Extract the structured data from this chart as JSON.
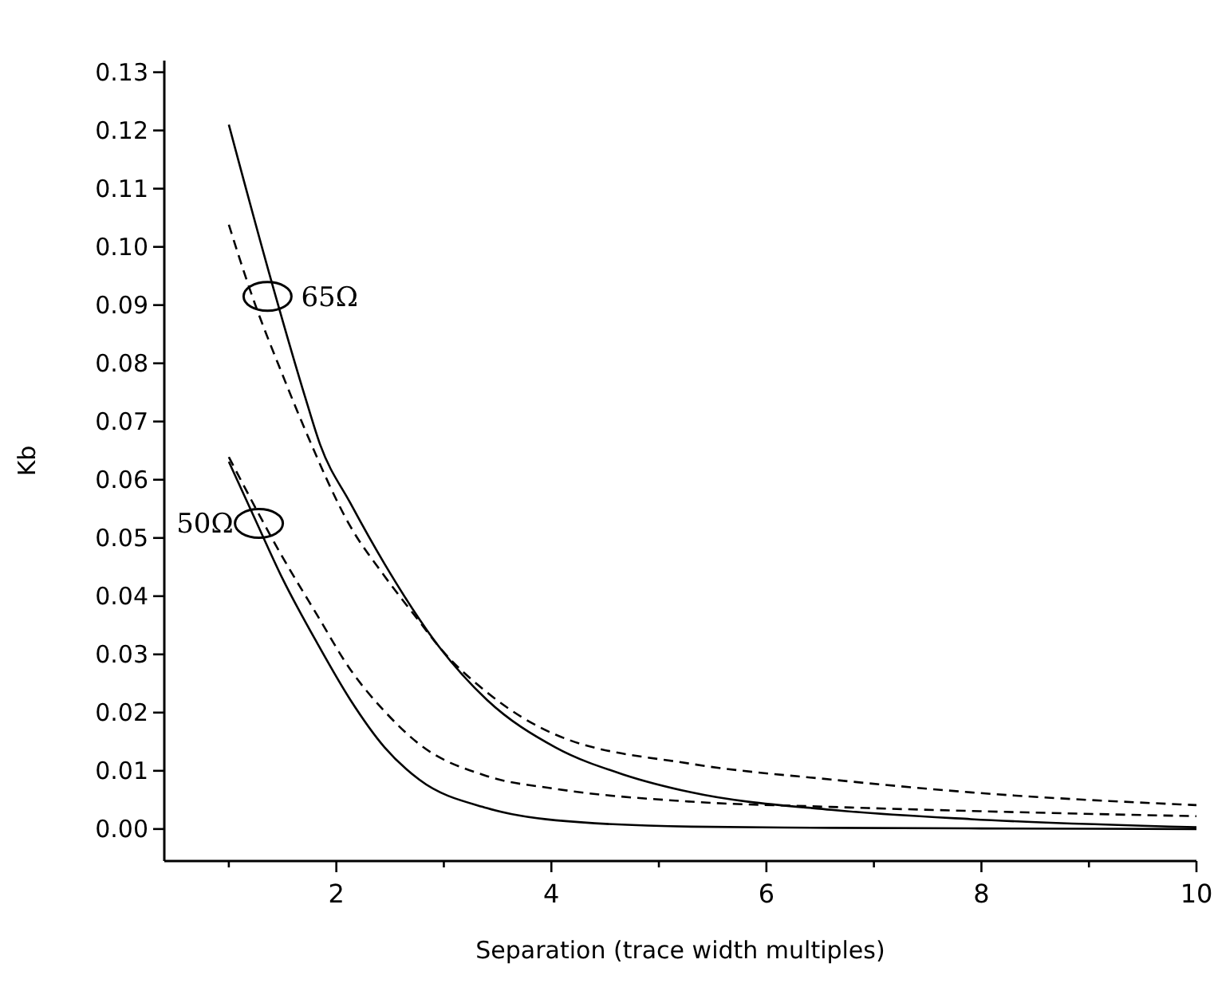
{
  "chart_data": {
    "type": "line",
    "xlabel": "Separation (trace width multiples)",
    "ylabel": "Kb",
    "xlim": [
      0.4,
      10
    ],
    "ylim": [
      -0.0055,
      0.132
    ],
    "xticks": [
      {
        "value": 1,
        "label": null
      },
      2,
      {
        "value": 3,
        "label": null
      },
      4,
      {
        "value": 5,
        "label": null
      },
      6,
      {
        "value": 7,
        "label": null
      },
      8,
      {
        "value": 9,
        "label": null
      },
      10
    ],
    "yticks": [
      {
        "value": 0,
        "label": "0.00"
      },
      {
        "value": 0.01,
        "label": "0.01"
      },
      {
        "value": 0.02,
        "label": "0.02"
      },
      {
        "value": 0.03,
        "label": "0.03"
      },
      {
        "value": 0.04,
        "label": "0.04"
      },
      {
        "value": 0.05,
        "label": "0.05"
      },
      {
        "value": 0.06,
        "label": "0.06"
      },
      {
        "value": 0.07,
        "label": "0.07"
      },
      {
        "value": 0.08,
        "label": "0.08"
      },
      {
        "value": 0.09,
        "label": "0.09"
      },
      {
        "value": 0.1,
        "label": "0.10"
      },
      {
        "value": 0.11,
        "label": "0.11"
      },
      {
        "value": 0.12,
        "label": "0.12"
      },
      {
        "value": 0.13,
        "label": "0.13"
      }
    ],
    "grid": false,
    "marker": "none",
    "series": [
      {
        "color": "#000000",
        "line_style": "solid",
        "x": [
          1,
          1.41,
          1.71,
          1.85,
          2.13,
          2.45,
          2.96,
          3.4,
          4.04,
          4.68,
          5.3,
          6.6,
          7.9,
          10
        ],
        "values": [
          0.121,
          0.0932,
          0.0742,
          0.066,
          0.056,
          0.0455,
          0.0312,
          0.0222,
          0.014,
          0.0093,
          0.0063,
          0.0033,
          0.0017,
          0.0003
        ]
      },
      {
        "color": "#000000",
        "line_style": "dashed",
        "x": [
          1,
          1.22,
          1.5,
          1.7,
          2.13,
          2.45,
          2.77,
          2.96,
          3.4,
          4.04,
          5.3,
          6.6,
          7.9,
          10
        ],
        "values": [
          0.1038,
          0.0914,
          0.078,
          0.069,
          0.052,
          0.0434,
          0.0357,
          0.0312,
          0.0235,
          0.0162,
          0.0112,
          0.0085,
          0.0063,
          0.0041
        ]
      },
      {
        "color": "#000000",
        "line_style": "solid",
        "x": [
          1,
          1.24,
          1.5,
          1.82,
          2.13,
          2.45,
          2.77,
          3.4,
          4.04,
          5.3,
          6.6,
          8,
          10
        ],
        "values": [
          0.0631,
          0.0534,
          0.043,
          0.032,
          0.0222,
          0.014,
          0.0085,
          0.0036,
          0.0015,
          0.0004,
          0.0002,
          0.0001,
          0
        ]
      },
      {
        "color": "#000000",
        "line_style": "dashed",
        "x": [
          1,
          1.5,
          1.82,
          2.13,
          2.45,
          2.77,
          3.4,
          4.04,
          5.3,
          6.6,
          7.9,
          10
        ],
        "values": [
          0.0639,
          0.0467,
          0.0368,
          0.0274,
          0.0202,
          0.0146,
          0.0091,
          0.0069,
          0.0047,
          0.0038,
          0.0031,
          0.0022
        ]
      }
    ],
    "annotations": [
      {
        "text": "65Ω",
        "x": 1.36,
        "y": 0.0915
      },
      {
        "text": "50Ω",
        "x": 1.28,
        "y": 0.0525
      }
    ]
  }
}
